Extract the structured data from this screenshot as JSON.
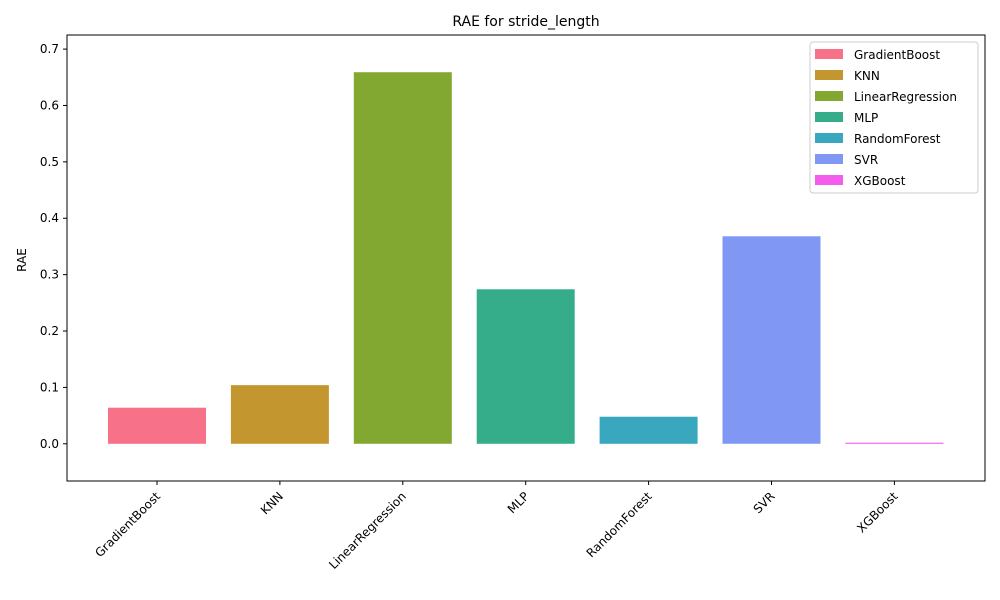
{
  "chart_data": {
    "type": "bar",
    "title": "RAE for stride_length",
    "xlabel": "",
    "ylabel": "RAE",
    "categories": [
      "GradientBoost",
      "KNN",
      "LinearRegression",
      "MLP",
      "RandomForest",
      "SVR",
      "XGBoost"
    ],
    "values": [
      0.064,
      0.104,
      0.659,
      0.274,
      0.048,
      0.368,
      0.002
    ],
    "colors": [
      "#f77189",
      "#c4962f",
      "#83a832",
      "#36ad8a",
      "#39a7bd",
      "#8197f4",
      "#f45deb"
    ],
    "ylim": [
      -0.066,
      0.725
    ],
    "yticks": [
      0.0,
      0.1,
      0.2,
      0.3,
      0.4,
      0.5,
      0.6,
      0.7
    ],
    "ytick_labels": [
      "0.0",
      "0.1",
      "0.2",
      "0.3",
      "0.4",
      "0.5",
      "0.6",
      "0.7"
    ],
    "grid": false,
    "legend": {
      "position": "top-right",
      "entries": [
        "GradientBoost",
        "KNN",
        "LinearRegression",
        "MLP",
        "RandomForest",
        "SVR",
        "XGBoost"
      ]
    }
  }
}
